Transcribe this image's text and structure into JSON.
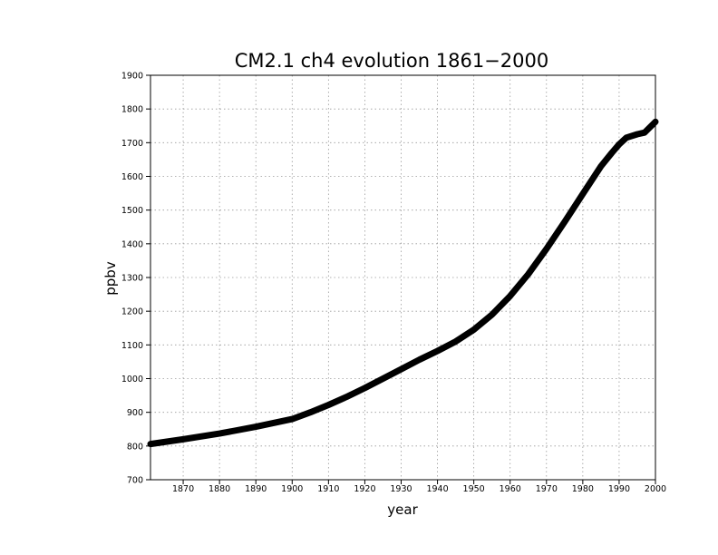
{
  "chart_data": {
    "type": "line",
    "title": "CM2.1 ch4 evolution 1861−2000",
    "xlabel": "year",
    "ylabel": "ppbv",
    "xlim": [
      1861,
      2000
    ],
    "ylim": [
      700,
      1900
    ],
    "x_ticks": [
      1870,
      1880,
      1890,
      1900,
      1910,
      1920,
      1930,
      1940,
      1950,
      1960,
      1970,
      1980,
      1990,
      2000
    ],
    "y_ticks": [
      700,
      800,
      900,
      1000,
      1100,
      1200,
      1300,
      1400,
      1500,
      1600,
      1700,
      1800,
      1900
    ],
    "grid": true,
    "series": [
      {
        "x": [
          1861,
          1870,
          1880,
          1890,
          1900,
          1905,
          1910,
          1915,
          1920,
          1925,
          1930,
          1935,
          1940,
          1945,
          1950,
          1955,
          1960,
          1965,
          1970,
          1975,
          1980,
          1985,
          1988,
          1990,
          1992,
          1995,
          1997,
          2000
        ],
        "values": [
          806,
          820,
          837,
          857,
          880,
          900,
          922,
          946,
          972,
          1000,
          1028,
          1056,
          1082,
          1110,
          1145,
          1190,
          1245,
          1310,
          1385,
          1465,
          1548,
          1630,
          1670,
          1695,
          1715,
          1725,
          1730,
          1762
        ]
      }
    ]
  }
}
